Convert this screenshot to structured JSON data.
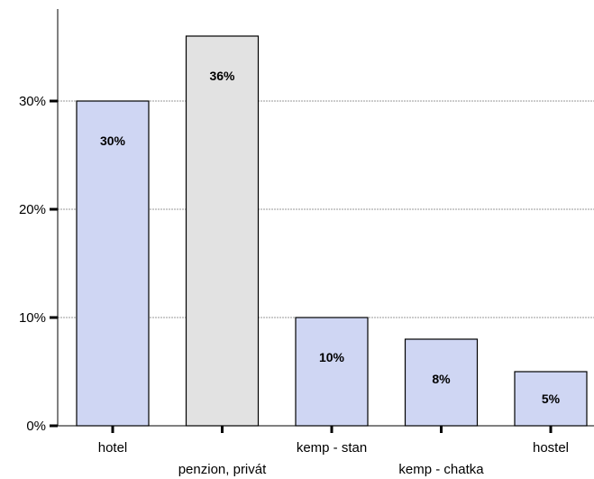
{
  "chart_data": {
    "type": "bar",
    "categories": [
      "hotel",
      "penzion, privát",
      "kemp - stan",
      "kemp - chatka",
      "hostel"
    ],
    "values": [
      30,
      36,
      10,
      8,
      5
    ],
    "value_labels": [
      "30%",
      "36%",
      "10%",
      "8%",
      "5%"
    ],
    "ylim": [
      0,
      38.5
    ],
    "yticks": [
      0,
      10,
      20,
      30
    ],
    "ytick_labels": [
      "0%",
      "10%",
      "20%",
      "30%"
    ],
    "grid": true,
    "title": "",
    "xlabel": "",
    "ylabel": "",
    "colors": {
      "default_bar": "#cfd6f3",
      "highlight_bar": "#e2e2e2",
      "bar_stroke": "#000000",
      "grid": "#9a9a9a",
      "axis": "#000000"
    },
    "highlight_index": 1
  }
}
